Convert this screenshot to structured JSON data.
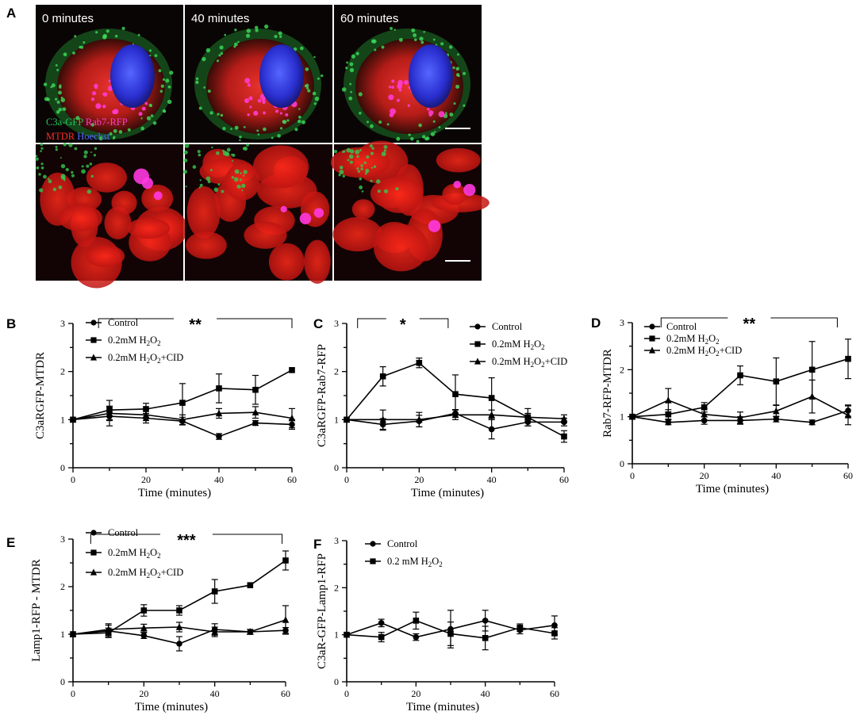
{
  "figure": {
    "panel_a": {
      "letter": "A",
      "time_labels": [
        "0 minutes",
        "40 minutes",
        "60 minutes"
      ],
      "stain_labels": [
        {
          "text": "C3a-GFP",
          "color": "#22c55e"
        },
        {
          "text": "Rab7-RFP",
          "color": "#ff3bd0"
        },
        {
          "text": "MTDR",
          "color": "#ff2a2a"
        },
        {
          "text": "Hoechst",
          "color": "#4f6bff"
        }
      ]
    }
  },
  "chart_data": [
    {
      "id": "B",
      "letter": "B",
      "type": "line",
      "ylabel": "C3aRGFP-MTDR",
      "xlabel": "Time (minutes)",
      "xlim": [
        0,
        60
      ],
      "ylim": [
        0,
        3
      ],
      "xticks": [
        "0",
        "20",
        "40",
        "60"
      ],
      "yticks": [
        "0",
        "1",
        "2",
        "3"
      ],
      "significance": {
        "text": "**",
        "x1": 7,
        "x2": 60
      },
      "series": [
        {
          "name": "Control",
          "marker": "circle",
          "x": [
            0,
            10,
            20,
            30,
            40,
            50,
            60
          ],
          "y": [
            1.0,
            1.07,
            1.03,
            0.97,
            0.65,
            0.93,
            0.9
          ],
          "err": [
            0.03,
            0.2,
            0.1,
            0.08,
            0.06,
            0.05,
            0.1
          ]
        },
        {
          "name": "0.2mM H",
          "name_sub": "2",
          "name_rest": "O",
          "name_sub2": "2",
          "marker": "square",
          "x": [
            0,
            10,
            20,
            30,
            40,
            50,
            60
          ],
          "y": [
            1.0,
            1.2,
            1.22,
            1.35,
            1.65,
            1.62,
            2.03
          ],
          "err": [
            0.03,
            0.2,
            0.12,
            0.4,
            0.3,
            0.3,
            0.03
          ]
        },
        {
          "name": "0.2mM H",
          "name_sub": "2",
          "name_rest": "O",
          "name_sub2": "2",
          "name_tail": "+CID",
          "marker": "triangle",
          "x": [
            0,
            10,
            20,
            30,
            40,
            50,
            60
          ],
          "y": [
            1.0,
            1.13,
            1.1,
            1.0,
            1.13,
            1.15,
            1.03
          ],
          "err": [
            0.03,
            0.15,
            0.12,
            0.1,
            0.1,
            0.12,
            0.2
          ]
        }
      ],
      "legend": [
        {
          "marker": "circle",
          "text": "Control"
        },
        {
          "marker": "square",
          "text": "0.2mM H",
          "sub": "2",
          "mid": "O",
          "sub2": "2",
          "tail": ""
        },
        {
          "marker": "triangle",
          "text": "0.2mM H",
          "sub": "2",
          "mid": "O",
          "sub2": "2",
          "tail": "+CID"
        }
      ]
    },
    {
      "id": "C",
      "letter": "C",
      "type": "line",
      "ylabel": "C3aRGFP-Rab7-RFP",
      "xlabel": "Time (minutes)",
      "xlim": [
        0,
        60
      ],
      "ylim": [
        0,
        3
      ],
      "xticks": [
        "0",
        "20",
        "40",
        "60"
      ],
      "yticks": [
        "0",
        "1",
        "2",
        "3"
      ],
      "significance": {
        "text": "*",
        "x1": 3,
        "x2": 28
      },
      "series": [
        {
          "name": "Control",
          "marker": "circle",
          "x": [
            0,
            10,
            20,
            30,
            40,
            50,
            60
          ],
          "y": [
            1.0,
            0.9,
            0.97,
            1.13,
            0.8,
            0.95,
            0.95
          ],
          "err": [
            0.03,
            0.12,
            0.12,
            0.08,
            0.2,
            0.08,
            0.08
          ]
        },
        {
          "name": "0.2mM H2O2",
          "marker": "square",
          "x": [
            0,
            10,
            20,
            30,
            40,
            50,
            60
          ],
          "y": [
            1.0,
            1.9,
            2.18,
            1.53,
            1.45,
            1.05,
            0.65
          ],
          "err": [
            0.03,
            0.2,
            0.1,
            0.4,
            0.42,
            0.18,
            0.12
          ]
        },
        {
          "name": "0.2mM H2O2+CID",
          "marker": "triangle",
          "x": [
            0,
            10,
            20,
            30,
            40,
            50,
            60
          ],
          "y": [
            1.0,
            1.0,
            1.0,
            1.1,
            1.1,
            1.05,
            1.02
          ],
          "err": [
            0.03,
            0.2,
            0.15,
            0.1,
            0.1,
            0.08,
            0.08
          ]
        }
      ],
      "legend": [
        {
          "marker": "circle",
          "text": "Control"
        },
        {
          "marker": "square",
          "text": "0.2mM H",
          "sub": "2",
          "mid": "O",
          "sub2": "2",
          "tail": ""
        },
        {
          "marker": "triangle",
          "text": "0.2mM H",
          "sub": "2",
          "mid": "O",
          "sub2": "2",
          "tail": "+CID"
        }
      ]
    },
    {
      "id": "D",
      "letter": "D",
      "type": "line",
      "ylabel": "Rab7-RFP-MTDR",
      "xlabel": "Time (minutes)",
      "xlim": [
        0,
        60
      ],
      "ylim": [
        0,
        3
      ],
      "xticks": [
        "0",
        "20",
        "40",
        "60"
      ],
      "yticks": [
        "0",
        "1",
        "2",
        "3"
      ],
      "significance": {
        "text": "**",
        "x1": 8,
        "x2": 57
      },
      "series": [
        {
          "name": "Control",
          "marker": "circle",
          "x": [
            0,
            10,
            20,
            30,
            40,
            50,
            60
          ],
          "y": [
            1.0,
            0.88,
            0.92,
            0.92,
            0.95,
            0.88,
            1.13
          ],
          "err": [
            0.03,
            0.05,
            0.08,
            0.08,
            0.06,
            0.05,
            0.12
          ]
        },
        {
          "name": "0.2mM H2O2",
          "marker": "square",
          "x": [
            0,
            10,
            20,
            30,
            40,
            50,
            60
          ],
          "y": [
            1.0,
            1.05,
            1.2,
            1.88,
            1.75,
            2.0,
            2.23
          ],
          "err": [
            0.03,
            0.1,
            0.1,
            0.2,
            0.5,
            0.6,
            0.42
          ]
        },
        {
          "name": "0.2mM H2O2+CID",
          "marker": "triangle",
          "x": [
            0,
            10,
            20,
            30,
            40,
            50,
            60
          ],
          "y": [
            1.0,
            1.35,
            1.05,
            0.98,
            1.12,
            1.43,
            1.03
          ],
          "err": [
            0.03,
            0.25,
            0.12,
            0.12,
            0.12,
            0.35,
            0.2
          ]
        }
      ],
      "legend": [
        {
          "marker": "circle",
          "text": "Control"
        },
        {
          "marker": "square",
          "text": "0.2mM H",
          "sub": "2",
          "mid": "O",
          "sub2": "2",
          "tail": ""
        },
        {
          "marker": "triangle",
          "text": "0.2mM H",
          "sub": "2",
          "mid": "O",
          "sub2": "2",
          "tail": "+CID"
        }
      ]
    },
    {
      "id": "E",
      "letter": "E",
      "type": "line",
      "ylabel": "Lamp1-RFP - MTDR",
      "xlabel": "Time (minutes)",
      "xlim": [
        0,
        60
      ],
      "ylim": [
        0,
        3
      ],
      "xticks": [
        "0",
        "20",
        "40",
        "60"
      ],
      "yticks": [
        "0",
        "1",
        "2",
        "3"
      ],
      "significance": {
        "text": "***",
        "x1": 5,
        "x2": 59
      },
      "series": [
        {
          "name": "Control",
          "marker": "circle",
          "x": [
            0,
            10,
            20,
            30,
            40,
            50,
            60
          ],
          "y": [
            1.0,
            1.07,
            0.97,
            0.8,
            1.1,
            1.05,
            1.08
          ],
          "err": [
            0.03,
            0.12,
            0.06,
            0.15,
            0.12,
            0.05,
            0.06
          ]
        },
        {
          "name": "0.2mM H2O2",
          "marker": "square",
          "x": [
            0,
            10,
            20,
            30,
            40,
            50,
            60
          ],
          "y": [
            1.0,
            1.03,
            1.5,
            1.5,
            1.9,
            2.03,
            2.55
          ],
          "err": [
            0.03,
            0.1,
            0.12,
            0.1,
            0.25,
            0.03,
            0.2
          ]
        },
        {
          "name": "0.2mM H2O2+CID",
          "marker": "triangle",
          "x": [
            0,
            10,
            20,
            30,
            40,
            50,
            60
          ],
          "y": [
            1.0,
            1.1,
            1.13,
            1.15,
            1.05,
            1.05,
            1.3
          ],
          "err": [
            0.03,
            0.12,
            0.08,
            0.1,
            0.1,
            0.05,
            0.3
          ]
        }
      ],
      "legend": [
        {
          "marker": "circle",
          "text": "Control"
        },
        {
          "marker": "square",
          "text": "0.2mM H",
          "sub": "2",
          "mid": "O",
          "sub2": "2",
          "tail": ""
        },
        {
          "marker": "triangle",
          "text": "0.2mM H",
          "sub": "2",
          "mid": "O",
          "sub2": "2",
          "tail": "+CID"
        }
      ]
    },
    {
      "id": "F",
      "letter": "F",
      "type": "line",
      "ylabel": "C3aR-GFP-Lamp1-RFP",
      "xlabel": "Time (minutes)",
      "xlim": [
        0,
        60
      ],
      "ylim": [
        0,
        3
      ],
      "xticks": [
        "0",
        "20",
        "40",
        "60"
      ],
      "yticks": [
        "0",
        "1",
        "2",
        "3"
      ],
      "significance": null,
      "series": [
        {
          "name": "Control",
          "marker": "circle",
          "x": [
            0,
            10,
            20,
            30,
            40,
            50,
            60
          ],
          "y": [
            1.0,
            1.25,
            0.95,
            1.12,
            1.3,
            1.1,
            1.2
          ],
          "err": [
            0.03,
            0.08,
            0.07,
            0.4,
            0.22,
            0.08,
            0.2
          ]
        },
        {
          "name": "0.2 mM H2O2",
          "marker": "square",
          "x": [
            0,
            10,
            20,
            30,
            40,
            50,
            60
          ],
          "y": [
            1.0,
            0.95,
            1.3,
            1.02,
            0.93,
            1.15,
            1.03
          ],
          "err": [
            0.03,
            0.1,
            0.18,
            0.25,
            0.25,
            0.08,
            0.12
          ]
        }
      ],
      "legend": [
        {
          "marker": "circle",
          "text": "Control"
        },
        {
          "marker": "square",
          "text": "0.2 mM H",
          "sub": "2",
          "mid": "O",
          "sub2": "2",
          "tail": ""
        }
      ]
    }
  ]
}
